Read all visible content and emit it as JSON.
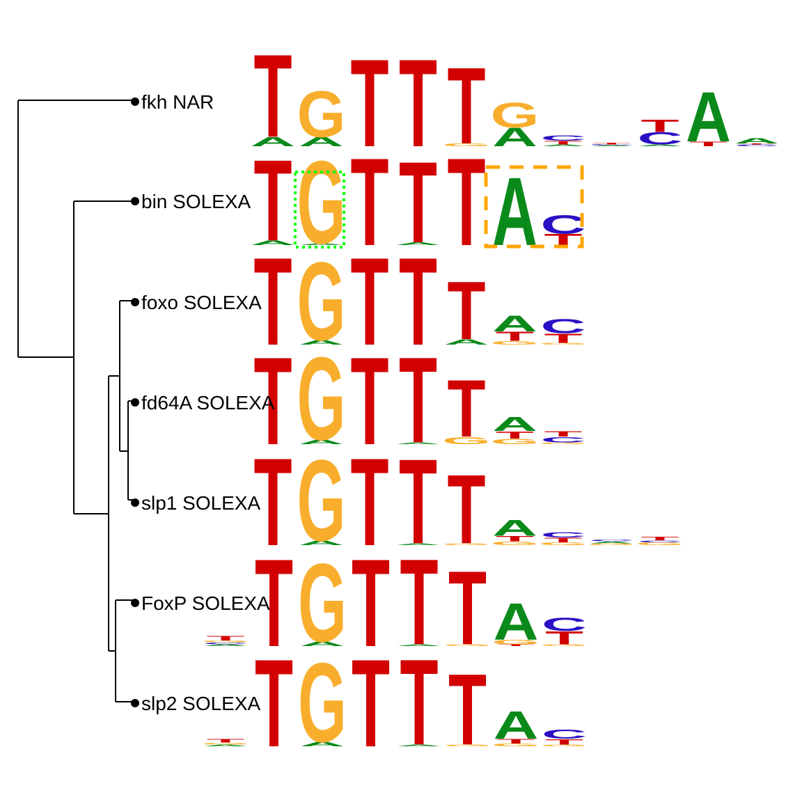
{
  "colors": {
    "A": "#0a8a1a",
    "C": "#2a10c4",
    "G": "#f8ae2c",
    "T": "#d20000",
    "tree": "#000000",
    "highlight_green": "#00ff00",
    "highlight_orange": "#ffa500"
  },
  "motifs": [
    {
      "label": "fkh NAR",
      "columns": [
        [
          [
            "A",
            0.1
          ],
          [
            "T",
            0.9
          ]
        ],
        [
          [
            "A",
            0.1
          ],
          [
            "G",
            0.5
          ]
        ],
        [
          [
            "T",
            0.95
          ]
        ],
        [
          [
            "T",
            0.95
          ]
        ],
        [
          [
            "G",
            0.03
          ],
          [
            "T",
            0.83
          ]
        ],
        [
          [
            "A",
            0.2
          ],
          [
            "G",
            0.27
          ]
        ],
        [
          [
            "A",
            0.02
          ],
          [
            "T",
            0.04
          ],
          [
            "C",
            0.06
          ]
        ],
        [
          [
            "A",
            0.01
          ],
          [
            "C",
            0.01
          ],
          [
            "T",
            0.02
          ]
        ],
        [
          [
            "A",
            0.02
          ],
          [
            "C",
            0.13
          ],
          [
            "T",
            0.13
          ]
        ],
        [
          [
            "T",
            0.05
          ],
          [
            "A",
            0.54
          ]
        ],
        [
          [
            "C",
            0.02
          ],
          [
            "T",
            0.01
          ],
          [
            "A",
            0.06
          ]
        ]
      ]
    },
    {
      "label": "bin SOLEXA",
      "columns": [
        [
          [
            "A",
            0.05
          ],
          [
            "T",
            0.88
          ]
        ],
        [
          [
            "A",
            0.02
          ],
          [
            "G",
            0.9
          ]
        ],
        [
          [
            "T",
            0.95
          ]
        ],
        [
          [
            "A",
            0.03
          ],
          [
            "T",
            0.88
          ]
        ],
        [
          [
            "T",
            0.95
          ]
        ],
        [
          [
            "A",
            0.74
          ]
        ],
        [
          [
            "T",
            0.12
          ],
          [
            "C",
            0.2
          ]
        ]
      ]
    },
    {
      "label": "foxo SOLEXA",
      "columns": [
        [
          [
            "T",
            0.95
          ]
        ],
        [
          [
            "A",
            0.05
          ],
          [
            "G",
            0.85
          ]
        ],
        [
          [
            "T",
            0.95
          ]
        ],
        [
          [
            "T",
            0.95
          ]
        ],
        [
          [
            "A",
            0.06
          ],
          [
            "T",
            0.63
          ]
        ],
        [
          [
            "G",
            0.04
          ],
          [
            "T",
            0.1
          ],
          [
            "A",
            0.17
          ]
        ],
        [
          [
            "G",
            0.02
          ],
          [
            "T",
            0.1
          ],
          [
            "C",
            0.15
          ]
        ]
      ]
    },
    {
      "label": "fd64A SOLEXA",
      "columns": [
        [
          [
            "T",
            0.95
          ]
        ],
        [
          [
            "A",
            0.05
          ],
          [
            "G",
            0.9
          ]
        ],
        [
          [
            "T",
            0.95
          ]
        ],
        [
          [
            "A",
            0.02
          ],
          [
            "T",
            0.93
          ]
        ],
        [
          [
            "G",
            0.08
          ],
          [
            "T",
            0.62
          ]
        ],
        [
          [
            "G",
            0.06
          ],
          [
            "T",
            0.08
          ],
          [
            "A",
            0.15
          ]
        ],
        [
          [
            "G",
            0.02
          ],
          [
            "C",
            0.06
          ],
          [
            "T",
            0.06
          ]
        ]
      ]
    },
    {
      "label": "slp1 SOLEXA",
      "columns": [
        [
          [
            "T",
            0.95
          ]
        ],
        [
          [
            "A",
            0.05
          ],
          [
            "G",
            0.88
          ]
        ],
        [
          [
            "T",
            0.95
          ]
        ],
        [
          [
            "A",
            0.02
          ],
          [
            "T",
            0.92
          ]
        ],
        [
          [
            "G",
            0.02
          ],
          [
            "T",
            0.75
          ]
        ],
        [
          [
            "G",
            0.04
          ],
          [
            "T",
            0.06
          ],
          [
            "A",
            0.17
          ]
        ],
        [
          [
            "G",
            0.03
          ],
          [
            "T",
            0.05
          ],
          [
            "C",
            0.06
          ]
        ],
        [
          [
            "G",
            0.02
          ],
          [
            "A",
            0.02
          ],
          [
            "C",
            0.02
          ]
        ],
        [
          [
            "G",
            0.03
          ],
          [
            "C",
            0.02
          ],
          [
            "T",
            0.04
          ]
        ]
      ]
    },
    {
      "label": "FoxP SOLEXA",
      "columns": [
        [
          [
            "A",
            0.02
          ],
          [
            "C",
            0.02
          ],
          [
            "G",
            0.02
          ],
          [
            "T",
            0.05
          ]
        ],
        [
          [
            "T",
            0.95
          ]
        ],
        [
          [
            "A",
            0.05
          ],
          [
            "G",
            0.85
          ]
        ],
        [
          [
            "T",
            0.95
          ]
        ],
        [
          [
            "A",
            0.02
          ],
          [
            "T",
            0.93
          ]
        ],
        [
          [
            "G",
            0.02
          ],
          [
            "T",
            0.8
          ]
        ],
        [
          [
            "T",
            0.02
          ],
          [
            "G",
            0.05
          ],
          [
            "A",
            0.4
          ]
        ],
        [
          [
            "G",
            0.02
          ],
          [
            "T",
            0.14
          ],
          [
            "C",
            0.14
          ]
        ]
      ]
    },
    {
      "label": "slp2 SOLEXA",
      "columns": [
        [
          [
            "A",
            0.02
          ],
          [
            "G",
            0.02
          ],
          [
            "T",
            0.04
          ]
        ],
        [
          [
            "T",
            0.95
          ]
        ],
        [
          [
            "A",
            0.05
          ],
          [
            "G",
            0.86
          ]
        ],
        [
          [
            "T",
            0.95
          ]
        ],
        [
          [
            "A",
            0.02
          ],
          [
            "T",
            0.93
          ]
        ],
        [
          [
            "G",
            0.02
          ],
          [
            "T",
            0.77
          ]
        ],
        [
          [
            "G",
            0.03
          ],
          [
            "T",
            0.05
          ],
          [
            "A",
            0.3
          ]
        ],
        [
          [
            "G",
            0.02
          ],
          [
            "T",
            0.06
          ],
          [
            "C",
            0.1
          ]
        ]
      ]
    }
  ]
}
